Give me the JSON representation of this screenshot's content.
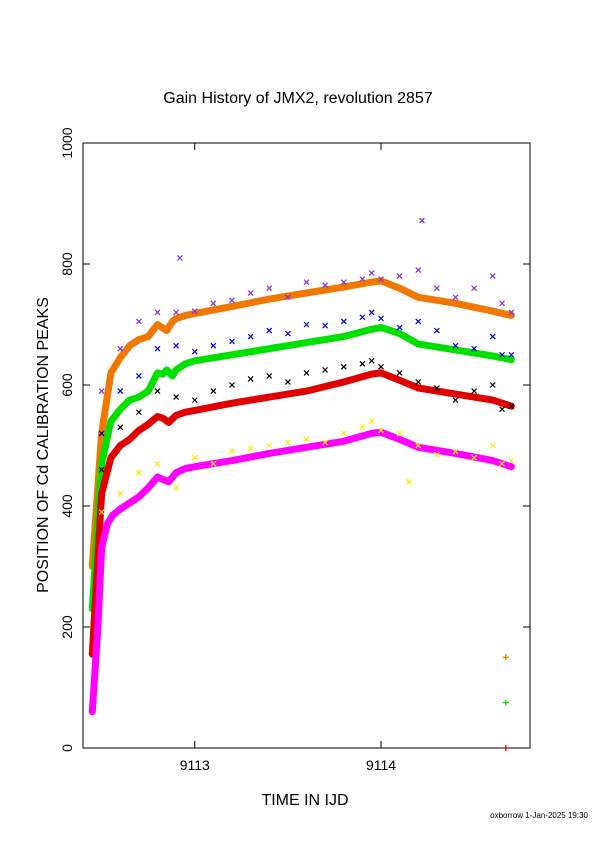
{
  "chart_data": {
    "type": "scatter",
    "title": "Gain History of JMX2, revolution 2857",
    "xlabel": "TIME IN IJD",
    "ylabel": "POSITION OF Cd CALIBRATION PEAKS",
    "footer": "oxborrow  1-Jan-2025 19:30",
    "xlim": [
      9112.4,
      9114.8
    ],
    "ylim": [
      0,
      1000
    ],
    "x_ticks": [
      9113,
      9114
    ],
    "y_ticks": [
      0,
      200,
      400,
      600,
      800,
      1000
    ],
    "grid": false,
    "legend": "none",
    "series": [
      {
        "color": "#f07800",
        "marker": "line",
        "x": [
          9112.45,
          9112.5,
          9112.55,
          9112.6,
          9112.65,
          9112.7,
          9112.75,
          9112.8,
          9112.85,
          9112.88,
          9112.9,
          9112.95,
          9113.0,
          9113.2,
          9113.4,
          9113.6,
          9113.8,
          9113.95,
          9114.0,
          9114.1,
          9114.2,
          9114.4,
          9114.6,
          9114.7
        ],
        "values": [
          300,
          520,
          620,
          645,
          665,
          675,
          680,
          700,
          690,
          705,
          710,
          715,
          718,
          730,
          742,
          752,
          762,
          770,
          772,
          760,
          745,
          735,
          722,
          715
        ]
      },
      {
        "color": "#00e000",
        "marker": "line",
        "x": [
          9112.45,
          9112.5,
          9112.55,
          9112.6,
          9112.65,
          9112.7,
          9112.75,
          9112.8,
          9112.83,
          9112.85,
          9112.88,
          9112.9,
          9112.95,
          9113.0,
          9113.2,
          9113.4,
          9113.6,
          9113.8,
          9113.95,
          9114.0,
          9114.1,
          9114.2,
          9114.4,
          9114.6,
          9114.7
        ],
        "values": [
          230,
          470,
          540,
          560,
          575,
          580,
          590,
          620,
          618,
          625,
          615,
          625,
          635,
          640,
          650,
          660,
          670,
          680,
          692,
          695,
          685,
          668,
          658,
          648,
          642
        ]
      },
      {
        "color": "#e00000",
        "marker": "line",
        "x": [
          9112.45,
          9112.5,
          9112.55,
          9112.6,
          9112.65,
          9112.7,
          9112.75,
          9112.8,
          9112.83,
          9112.86,
          9112.9,
          9112.95,
          9113.0,
          9113.2,
          9113.4,
          9113.6,
          9113.8,
          9113.95,
          9114.0,
          9114.1,
          9114.2,
          9114.4,
          9114.6,
          9114.7
        ],
        "values": [
          155,
          420,
          480,
          500,
          510,
          525,
          535,
          548,
          545,
          538,
          550,
          555,
          558,
          570,
          580,
          590,
          605,
          618,
          620,
          608,
          595,
          585,
          575,
          565
        ]
      },
      {
        "color": "#ff00ff",
        "marker": "line",
        "x": [
          9112.45,
          9112.48,
          9112.5,
          9112.53,
          9112.56,
          9112.6,
          9112.65,
          9112.7,
          9112.75,
          9112.8,
          9112.82,
          9112.86,
          9112.9,
          9112.95,
          9113.0,
          9113.2,
          9113.4,
          9113.6,
          9113.8,
          9113.95,
          9114.0,
          9114.1,
          9114.2,
          9114.4,
          9114.6,
          9114.7
        ],
        "values": [
          60,
          200,
          330,
          370,
          385,
          395,
          405,
          415,
          430,
          448,
          445,
          440,
          455,
          462,
          465,
          475,
          487,
          497,
          507,
          520,
          522,
          510,
          497,
          487,
          475,
          465
        ]
      },
      {
        "color": "#8a2be2",
        "marker": "x",
        "x": [
          9112.5,
          9112.6,
          9112.7,
          9112.8,
          9112.9,
          9113.0,
          9113.1,
          9113.2,
          9113.3,
          9113.4,
          9113.5,
          9113.6,
          9113.7,
          9113.8,
          9113.9,
          9113.95,
          9114.0,
          9114.1,
          9114.2,
          9114.3,
          9114.4,
          9114.5,
          9114.6,
          9114.65,
          9114.7,
          9112.92,
          9114.22
        ],
        "values": [
          590,
          660,
          705,
          720,
          720,
          722,
          735,
          740,
          752,
          760,
          745,
          770,
          765,
          770,
          775,
          785,
          775,
          780,
          790,
          760,
          745,
          760,
          780,
          735,
          720,
          810,
          872
        ]
      },
      {
        "color": "#0000e0",
        "marker": "x",
        "x": [
          9112.5,
          9112.6,
          9112.7,
          9112.8,
          9112.9,
          9113.0,
          9113.1,
          9113.2,
          9113.3,
          9113.4,
          9113.5,
          9113.6,
          9113.7,
          9113.8,
          9113.9,
          9113.95,
          9114.0,
          9114.1,
          9114.2,
          9114.3,
          9114.4,
          9114.5,
          9114.6,
          9114.65,
          9114.7
        ],
        "values": [
          520,
          590,
          615,
          660,
          665,
          655,
          665,
          672,
          680,
          690,
          685,
          700,
          698,
          705,
          712,
          720,
          710,
          695,
          705,
          690,
          665,
          660,
          680,
          650,
          650
        ]
      },
      {
        "color": "#000000",
        "marker": "x",
        "x": [
          9112.5,
          9112.6,
          9112.7,
          9112.8,
          9112.9,
          9113.0,
          9113.1,
          9113.2,
          9113.3,
          9113.4,
          9113.5,
          9113.6,
          9113.7,
          9113.8,
          9113.9,
          9113.95,
          9114.0,
          9114.1,
          9114.2,
          9114.3,
          9114.4,
          9114.5,
          9114.6,
          9114.65,
          9114.7
        ],
        "values": [
          460,
          530,
          555,
          590,
          580,
          575,
          590,
          600,
          610,
          615,
          605,
          620,
          625,
          630,
          635,
          640,
          630,
          620,
          605,
          595,
          575,
          590,
          600,
          560,
          565
        ]
      },
      {
        "color": "#f0f000",
        "marker": "x",
        "x": [
          9112.5,
          9112.6,
          9112.7,
          9112.8,
          9112.9,
          9113.0,
          9113.1,
          9113.2,
          9113.3,
          9113.4,
          9113.5,
          9113.6,
          9113.7,
          9113.8,
          9113.9,
          9113.95,
          9114.0,
          9114.1,
          9114.2,
          9114.3,
          9114.4,
          9114.5,
          9114.6,
          9114.65,
          9114.7,
          9114.15
        ],
        "values": [
          390,
          420,
          455,
          470,
          430,
          480,
          470,
          490,
          495,
          500,
          505,
          510,
          505,
          520,
          530,
          540,
          525,
          520,
          500,
          485,
          490,
          480,
          500,
          470,
          475,
          440
        ]
      },
      {
        "color": "#f07800",
        "marker": "+",
        "x": [
          9114.67
        ],
        "values": [
          150
        ]
      },
      {
        "color": "#00e000",
        "marker": "+",
        "x": [
          9114.67
        ],
        "values": [
          75
        ]
      },
      {
        "color": "#e00000",
        "marker": "+",
        "x": [
          9114.67
        ],
        "values": [
          0
        ]
      }
    ]
  }
}
